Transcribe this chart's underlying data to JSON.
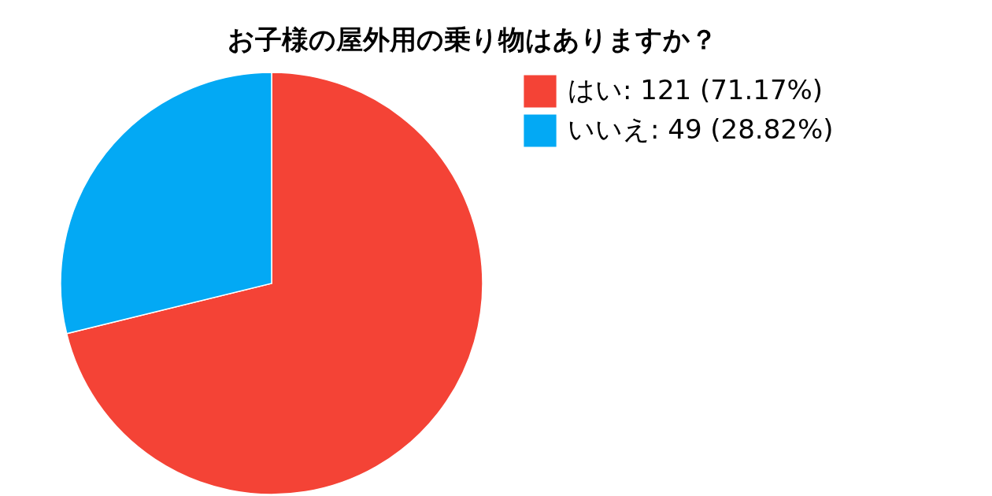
{
  "chart_data": {
    "type": "pie",
    "title": "お子様の屋外用の乗り物はありますか？",
    "categories": [
      "はい: 121 (71.17%)",
      "いいえ: 49 (28.82%)"
    ],
    "values": [
      121,
      49
    ],
    "colors": [
      "#f44336",
      "#03a9f4"
    ],
    "legend": "top right"
  }
}
